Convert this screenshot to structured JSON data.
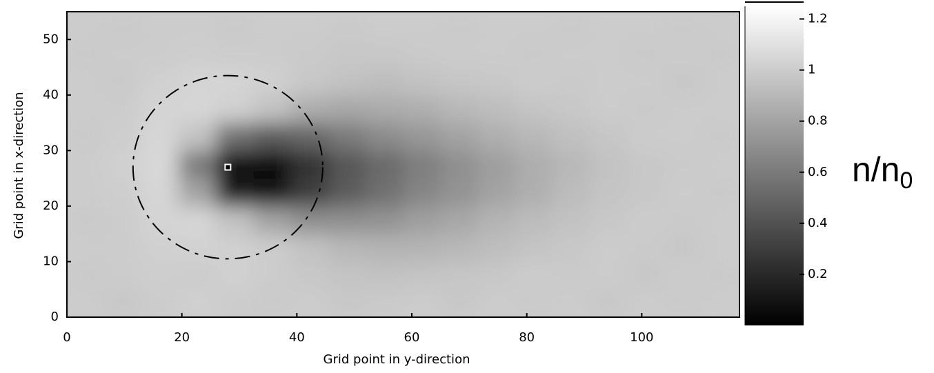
{
  "chart_data": {
    "type": "heatmap",
    "x_label": "Grid point in y-direction",
    "y_label": "Grid point in x-direction",
    "colorbar_label": "n/n",
    "colorbar_label_subscript": "0",
    "x": [
      3.25,
      9.75,
      16.25,
      22.75,
      29.25,
      35.75,
      42.25,
      48.75,
      55.25,
      61.75,
      68.25,
      74.75,
      81.25,
      87.75,
      94.25,
      100.75,
      107.25,
      113.75
    ],
    "y": [
      2.5,
      7.5,
      12.5,
      17.5,
      22.5,
      27.5,
      32.5,
      37.5,
      42.5,
      47.5,
      52.5
    ],
    "z": [
      [
        1.0,
        0.98,
        1.0,
        1.02,
        1.0,
        0.99,
        1.0,
        0.98,
        0.99,
        1.0,
        0.98,
        1.0,
        0.99,
        1.0,
        0.98,
        1.0,
        0.99,
        1.0
      ],
      [
        0.99,
        1.0,
        1.01,
        1.0,
        1.02,
        1.0,
        0.98,
        0.96,
        0.95,
        0.96,
        0.97,
        0.98,
        1.0,
        0.99,
        1.0,
        0.98,
        1.0,
        0.99
      ],
      [
        1.0,
        1.0,
        1.02,
        1.03,
        1.02,
        1.0,
        0.95,
        0.9,
        0.88,
        0.88,
        0.9,
        0.93,
        0.96,
        0.98,
        1.0,
        0.99,
        0.98,
        1.0
      ],
      [
        0.99,
        1.0,
        1.04,
        1.05,
        0.95,
        0.8,
        0.7,
        0.7,
        0.72,
        0.78,
        0.82,
        0.88,
        0.92,
        0.95,
        0.98,
        1.0,
        0.99,
        1.0
      ],
      [
        1.0,
        1.01,
        1.05,
        0.8,
        0.15,
        0.1,
        0.3,
        0.45,
        0.55,
        0.65,
        0.72,
        0.8,
        0.86,
        0.92,
        0.96,
        0.98,
        1.0,
        0.99
      ],
      [
        1.0,
        1.02,
        1.06,
        0.6,
        0.05,
        0.05,
        0.25,
        0.42,
        0.52,
        0.62,
        0.7,
        0.78,
        0.85,
        0.9,
        0.95,
        0.98,
        0.99,
        1.0
      ],
      [
        0.99,
        1.01,
        1.05,
        0.95,
        0.55,
        0.45,
        0.5,
        0.6,
        0.68,
        0.74,
        0.8,
        0.86,
        0.9,
        0.94,
        0.97,
        1.0,
        1.0,
        0.99
      ],
      [
        1.0,
        1.0,
        1.04,
        1.05,
        1.02,
        0.95,
        0.85,
        0.82,
        0.84,
        0.86,
        0.9,
        0.93,
        0.96,
        0.98,
        1.0,
        0.99,
        1.0,
        1.0
      ],
      [
        1.0,
        0.99,
        1.02,
        1.04,
        1.04,
        1.02,
        0.98,
        0.95,
        0.93,
        0.95,
        0.97,
        0.98,
        1.0,
        0.99,
        1.0,
        1.0,
        0.98,
        1.0
      ],
      [
        0.99,
        1.0,
        1.0,
        1.01,
        1.0,
        1.0,
        0.99,
        0.98,
        0.98,
        0.99,
        1.0,
        1.0,
        0.99,
        1.0,
        1.0,
        0.99,
        1.0,
        0.99
      ],
      [
        1.0,
        0.99,
        1.0,
        1.0,
        0.99,
        1.0,
        1.0,
        0.99,
        1.0,
        1.0,
        0.99,
        1.0,
        1.0,
        0.99,
        1.0,
        1.0,
        0.99,
        1.0
      ]
    ],
    "xlim": [
      0,
      117
    ],
    "ylim": [
      0,
      55
    ],
    "xticks": [
      0,
      20,
      40,
      60,
      80,
      100
    ],
    "yticks": [
      0,
      10,
      20,
      30,
      40,
      50
    ],
    "clim": [
      0,
      1.25
    ],
    "cticks": [
      0.2,
      0.4,
      0.6,
      0.8,
      1,
      1.2
    ],
    "colormap": "gray",
    "circle": {
      "x": 28,
      "y": 27,
      "r": 16.5
    },
    "marker": {
      "x": 28,
      "y": 27
    }
  }
}
